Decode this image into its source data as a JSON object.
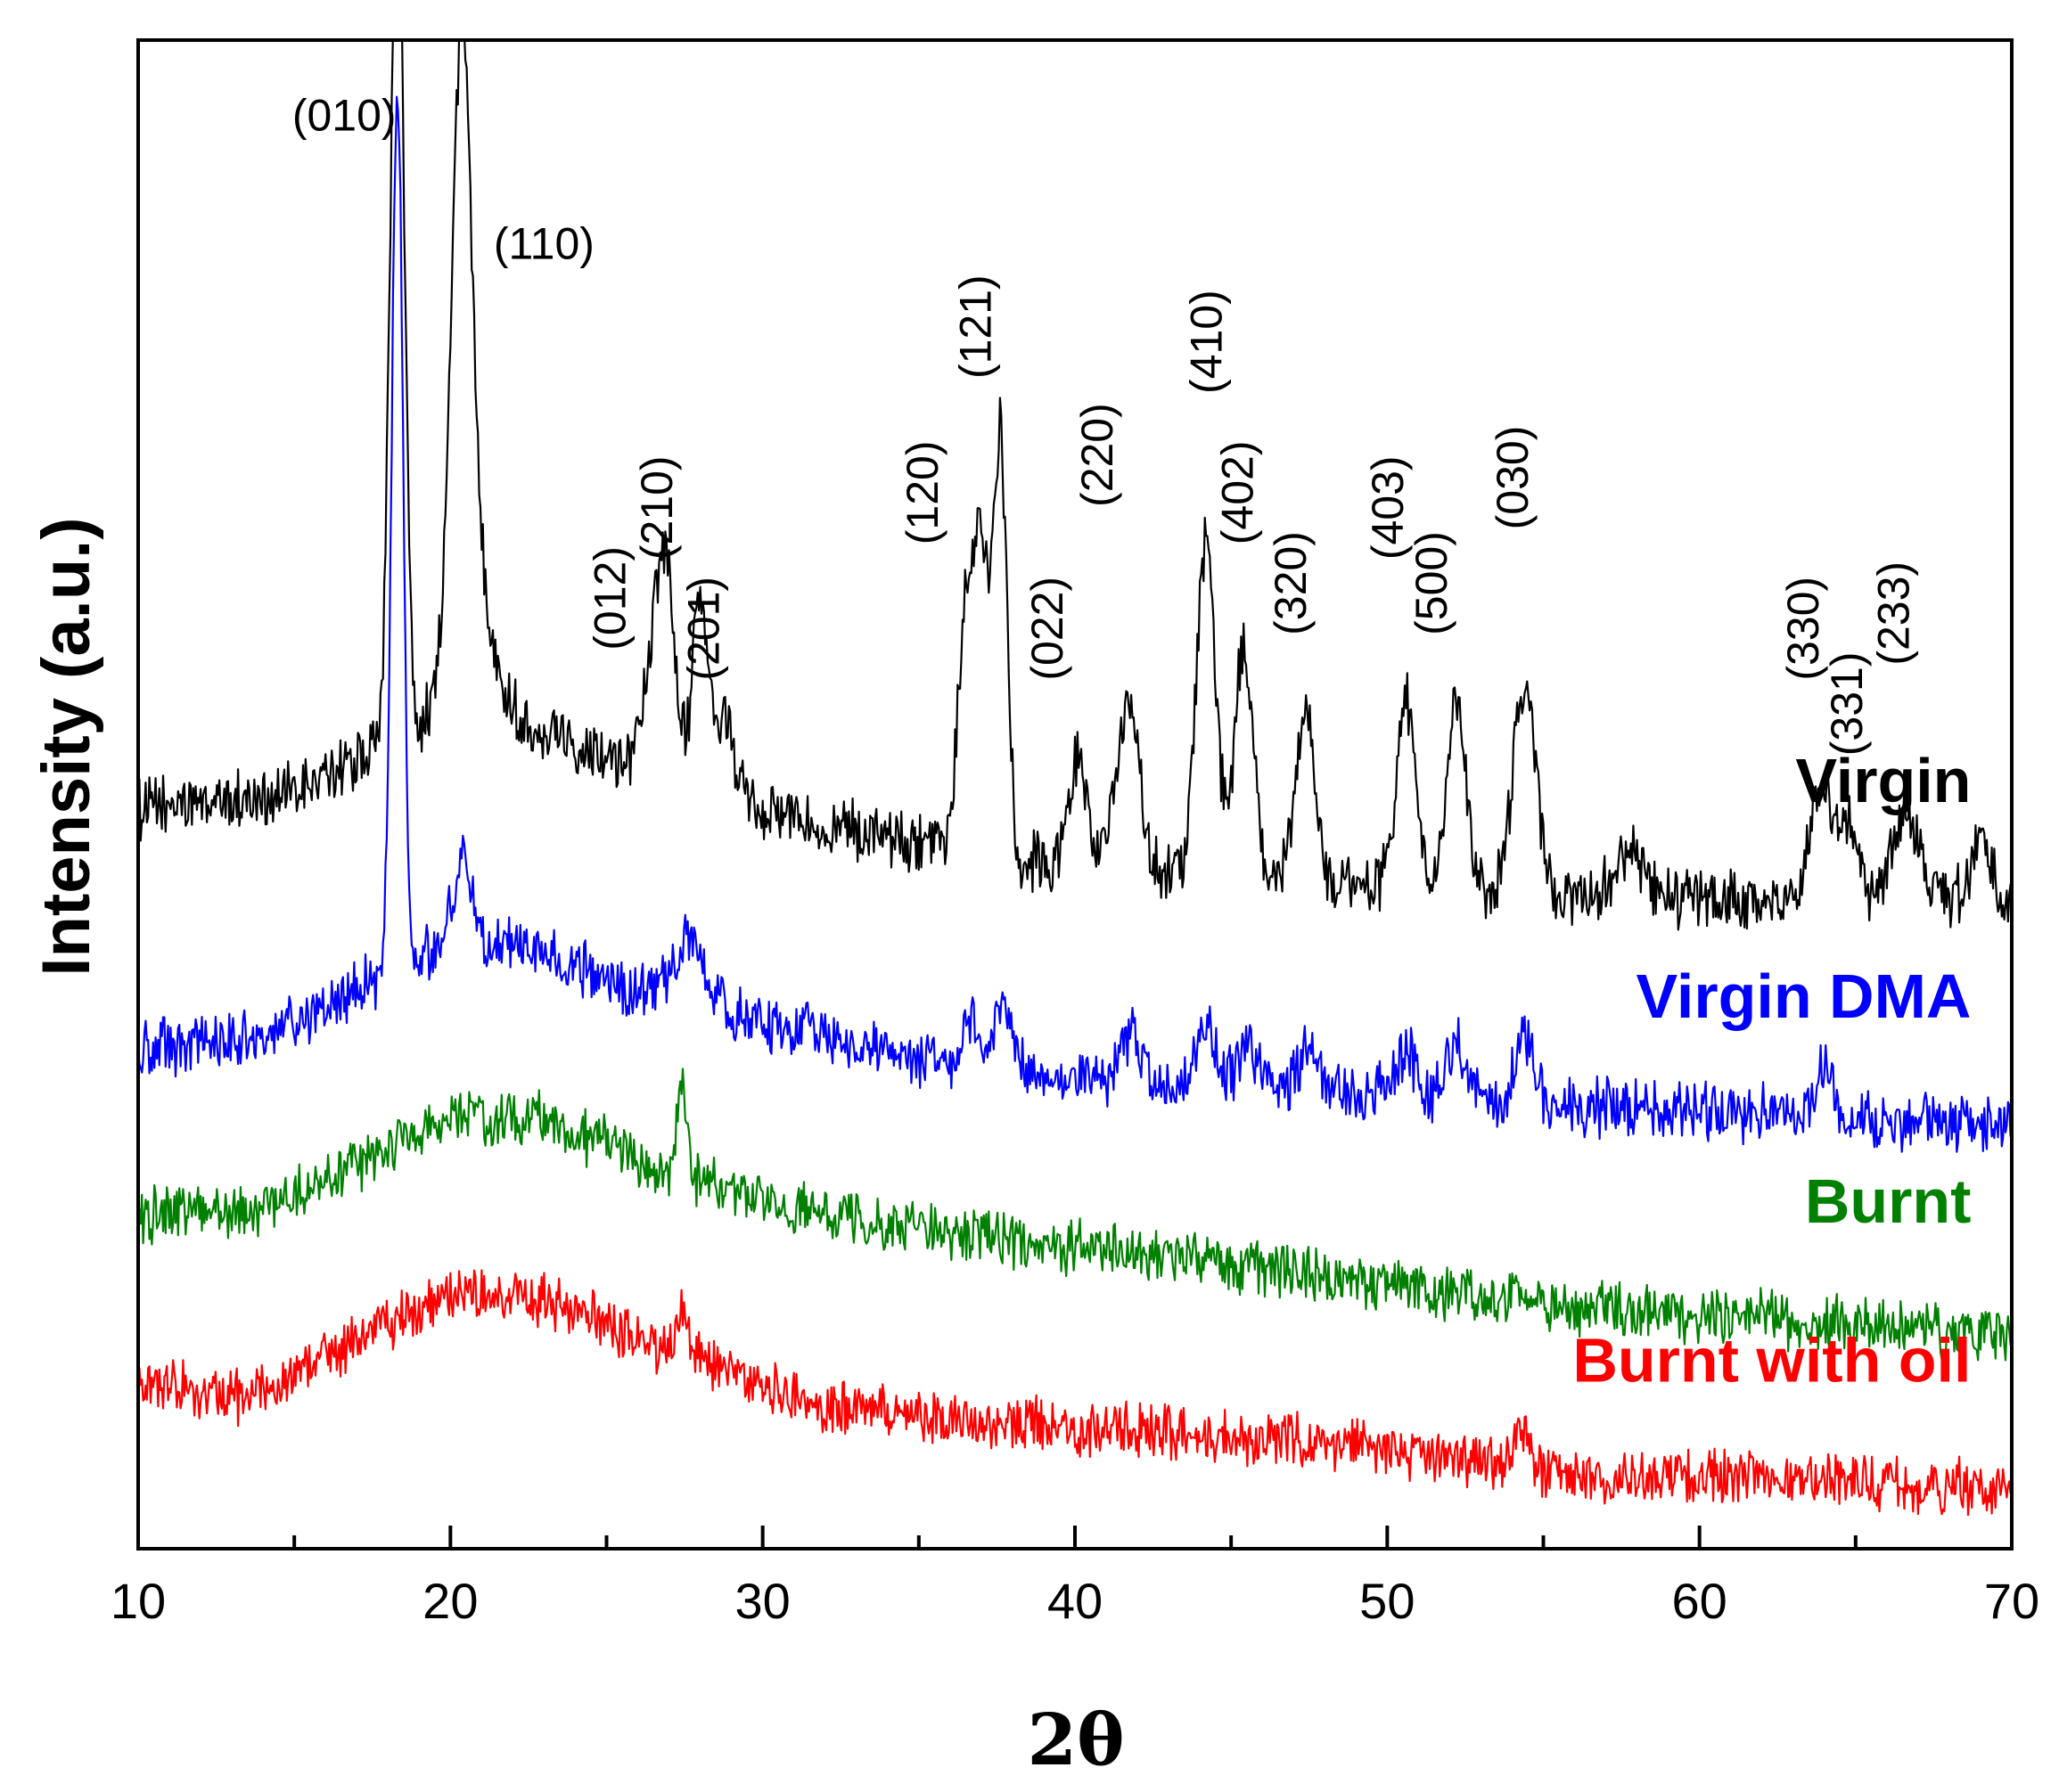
{
  "chart_data": {
    "type": "line",
    "title": "",
    "xlabel": "2θ",
    "ylabel": "Intensity (a.u.)",
    "xlim": [
      10,
      70
    ],
    "ylim": [
      0,
      100
    ],
    "x_ticks": [
      10,
      20,
      30,
      40,
      50,
      60,
      70
    ],
    "x_minor_step": 5,
    "y_ticks_shown": false,
    "grid": false,
    "series": [
      {
        "name": "Virgin",
        "color": "#000000",
        "label_position": "right",
        "baseline": [
          [
            10,
            49
          ],
          [
            15,
            50
          ],
          [
            17.5,
            53
          ],
          [
            20,
            55
          ],
          [
            22,
            55
          ],
          [
            26,
            52
          ],
          [
            30,
            49
          ],
          [
            36,
            46
          ],
          [
            42,
            45
          ],
          [
            50,
            44
          ],
          [
            60,
            43
          ],
          [
            70,
            43
          ]
        ],
        "noise": 1.7,
        "peaks": [
          [
            18.3,
            58,
            0.22
          ],
          [
            20.35,
            35,
            0.3
          ],
          [
            20.6,
            12,
            0.6
          ],
          [
            26.4,
            5,
            0.3
          ],
          [
            26.9,
            13,
            0.3
          ],
          [
            28.0,
            12,
            0.25
          ],
          [
            28.8,
            5,
            0.3
          ],
          [
            36.5,
            16,
            0.25
          ],
          [
            37.0,
            20,
            0.22
          ],
          [
            37.6,
            28,
            0.22
          ],
          [
            40.1,
            7,
            0.3
          ],
          [
            41.7,
            11,
            0.35
          ],
          [
            44.2,
            22,
            0.3
          ],
          [
            45.4,
            15,
            0.3
          ],
          [
            47.4,
            11,
            0.3
          ],
          [
            50.6,
            12,
            0.3
          ],
          [
            52.2,
            12,
            0.3
          ],
          [
            54.4,
            14,
            0.35
          ],
          [
            57.8,
            3,
            0.4
          ],
          [
            63.9,
            8,
            0.35
          ],
          [
            64.8,
            5,
            0.3
          ],
          [
            66.6,
            6,
            0.4
          ],
          [
            69.0,
            4,
            0.3
          ]
        ]
      },
      {
        "name": "Virgin DMA",
        "color": "#0000ff",
        "label_position": "right",
        "baseline": [
          [
            10,
            33
          ],
          [
            14,
            34
          ],
          [
            17,
            37
          ],
          [
            20,
            40
          ],
          [
            22,
            40
          ],
          [
            26,
            37
          ],
          [
            30,
            35
          ],
          [
            36,
            32
          ],
          [
            42,
            31
          ],
          [
            50,
            30
          ],
          [
            60,
            29
          ],
          [
            70,
            28
          ]
        ],
        "noise": 1.6,
        "peaks": [
          [
            18.3,
            58,
            0.18
          ],
          [
            20.4,
            6,
            0.3
          ],
          [
            27.6,
            4,
            0.5
          ],
          [
            36.6,
            3,
            0.3
          ],
          [
            37.7,
            5,
            0.25
          ],
          [
            41.8,
            3,
            0.3
          ],
          [
            44.2,
            4,
            0.3
          ],
          [
            45.5,
            3,
            0.3
          ],
          [
            47.5,
            3,
            0.3
          ],
          [
            50.6,
            3,
            0.3
          ],
          [
            52.2,
            4,
            0.3
          ],
          [
            54.4,
            4,
            0.3
          ],
          [
            64.0,
            3,
            0.3
          ]
        ]
      },
      {
        "name": "Burnt",
        "color": "#008000",
        "label_position": "right",
        "baseline": [
          [
            10,
            22
          ],
          [
            14,
            22.5
          ],
          [
            17,
            25.5
          ],
          [
            20,
            28.5
          ],
          [
            23,
            28.5
          ],
          [
            27,
            25
          ],
          [
            32,
            22
          ],
          [
            40,
            20
          ],
          [
            48,
            18
          ],
          [
            56,
            16
          ],
          [
            64,
            15
          ],
          [
            70,
            14
          ]
        ],
        "noise": 1.5,
        "peaks": [
          [
            27.4,
            6,
            0.15
          ]
        ]
      },
      {
        "name": "Burnt with oil",
        "color": "#ff0000",
        "label_position": "right",
        "baseline": [
          [
            10,
            11
          ],
          [
            13.5,
            10
          ],
          [
            17,
            14
          ],
          [
            20.5,
            17
          ],
          [
            23,
            16.5
          ],
          [
            27,
            13
          ],
          [
            32,
            9.5
          ],
          [
            40,
            8
          ],
          [
            48,
            7
          ],
          [
            56,
            5
          ],
          [
            64,
            4.5
          ],
          [
            70,
            4
          ]
        ],
        "noise": 1.5,
        "peaks": [
          [
            27.4,
            3,
            0.2
          ],
          [
            54.3,
            2,
            0.3
          ]
        ]
      }
    ],
    "annotations": [
      {
        "text": "(010)",
        "x": 16.6,
        "y": 94,
        "rotate": 0
      },
      {
        "text": "(110)",
        "x": 23.0,
        "y": 85.5,
        "rotate": 0
      },
      {
        "text": "(012)",
        "x": 25.6,
        "y": 63,
        "rotate": -90
      },
      {
        "text": "(210)",
        "x": 27.1,
        "y": 69,
        "rotate": -90
      },
      {
        "text": "(201)",
        "x": 28.6,
        "y": 61,
        "rotate": -90
      },
      {
        "text": "(120)",
        "x": 35.6,
        "y": 70,
        "rotate": -90
      },
      {
        "text": "(121)",
        "x": 37.3,
        "y": 81,
        "rotate": -90
      },
      {
        "text": "(022)",
        "x": 39.6,
        "y": 61,
        "rotate": -90
      },
      {
        "text": "(220)",
        "x": 41.2,
        "y": 72.5,
        "rotate": -90
      },
      {
        "text": "(410)",
        "x": 44.7,
        "y": 80,
        "rotate": -90
      },
      {
        "text": "(402)",
        "x": 45.7,
        "y": 70,
        "rotate": -90
      },
      {
        "text": "(320)",
        "x": 47.4,
        "y": 64,
        "rotate": -90
      },
      {
        "text": "(403)",
        "x": 50.5,
        "y": 69,
        "rotate": -90
      },
      {
        "text": "(500)",
        "x": 51.9,
        "y": 64,
        "rotate": -90
      },
      {
        "text": "(030)",
        "x": 54.5,
        "y": 71,
        "rotate": -90
      },
      {
        "text": "(330)",
        "x": 63.8,
        "y": 61,
        "rotate": -90
      },
      {
        "text": "(331)",
        "x": 65.2,
        "y": 56,
        "rotate": -90
      },
      {
        "text": "(233)",
        "x": 66.7,
        "y": 62,
        "rotate": -90
      }
    ]
  }
}
